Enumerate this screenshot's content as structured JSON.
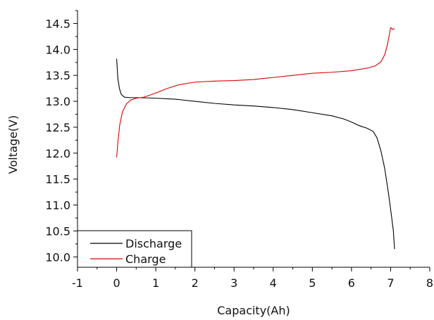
{
  "chart_data": {
    "type": "line",
    "title": "",
    "xlabel": "Capacity(Ah)",
    "ylabel": "Voltage(V)",
    "xlim": [
      -1,
      8
    ],
    "ylim": [
      9.8,
      14.75
    ],
    "x_ticks": [
      "-1",
      "0",
      "1",
      "2",
      "3",
      "4",
      "5",
      "6",
      "7",
      "8"
    ],
    "y_ticks": [
      "10.0",
      "10.5",
      "11.0",
      "11.5",
      "12.0",
      "12.5",
      "13.0",
      "13.5",
      "14.0",
      "14.5"
    ],
    "grid": false,
    "legend_position": "bottom-left",
    "series": [
      {
        "name": "Discharge",
        "color": "#000000",
        "points": [
          [
            0.0,
            13.82
          ],
          [
            0.03,
            13.45
          ],
          [
            0.07,
            13.25
          ],
          [
            0.12,
            13.13
          ],
          [
            0.2,
            13.08
          ],
          [
            0.35,
            13.07
          ],
          [
            0.6,
            13.07
          ],
          [
            1.0,
            13.06
          ],
          [
            1.5,
            13.04
          ],
          [
            2.0,
            13.0
          ],
          [
            2.5,
            12.96
          ],
          [
            3.0,
            12.93
          ],
          [
            3.5,
            12.91
          ],
          [
            4.0,
            12.88
          ],
          [
            4.5,
            12.84
          ],
          [
            5.0,
            12.78
          ],
          [
            5.5,
            12.72
          ],
          [
            5.8,
            12.66
          ],
          [
            6.0,
            12.6
          ],
          [
            6.2,
            12.53
          ],
          [
            6.4,
            12.48
          ],
          [
            6.55,
            12.42
          ],
          [
            6.65,
            12.3
          ],
          [
            6.75,
            12.05
          ],
          [
            6.85,
            11.7
          ],
          [
            6.95,
            11.2
          ],
          [
            7.02,
            10.8
          ],
          [
            7.07,
            10.5
          ],
          [
            7.1,
            10.15
          ]
        ]
      },
      {
        "name": "Charge",
        "color": "#dd0000",
        "points": [
          [
            0.0,
            11.92
          ],
          [
            0.03,
            12.2
          ],
          [
            0.08,
            12.55
          ],
          [
            0.15,
            12.8
          ],
          [
            0.25,
            12.95
          ],
          [
            0.35,
            13.02
          ],
          [
            0.5,
            13.06
          ],
          [
            0.7,
            13.08
          ],
          [
            1.0,
            13.16
          ],
          [
            1.3,
            13.25
          ],
          [
            1.6,
            13.32
          ],
          [
            2.0,
            13.37
          ],
          [
            2.5,
            13.39
          ],
          [
            3.0,
            13.4
          ],
          [
            3.5,
            13.42
          ],
          [
            4.0,
            13.46
          ],
          [
            4.5,
            13.5
          ],
          [
            5.0,
            13.54
          ],
          [
            5.5,
            13.56
          ],
          [
            6.0,
            13.59
          ],
          [
            6.4,
            13.64
          ],
          [
            6.6,
            13.68
          ],
          [
            6.75,
            13.76
          ],
          [
            6.85,
            13.9
          ],
          [
            6.92,
            14.1
          ],
          [
            6.97,
            14.3
          ],
          [
            7.0,
            14.42
          ],
          [
            7.05,
            14.39
          ],
          [
            7.1,
            14.4
          ]
        ]
      }
    ]
  }
}
